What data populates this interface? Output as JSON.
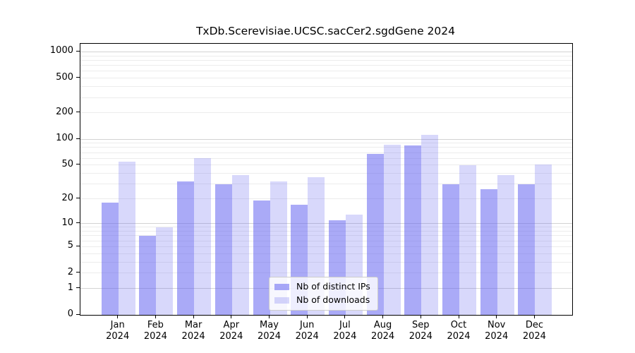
{
  "chart_data": {
    "type": "bar",
    "title": "TxDb.Scerevisiae.UCSC.sacCer2.sgdGene 2024",
    "categories": [
      "Jan",
      "Feb",
      "Mar",
      "Apr",
      "May",
      "Jun",
      "Jul",
      "Aug",
      "Sep",
      "Oct",
      "Nov",
      "Dec"
    ],
    "year_label": "2024",
    "series": [
      {
        "name": "Nb of distinct IPs",
        "color": "rgba(100,100,240,0.55)",
        "values": [
          18,
          7,
          32,
          30,
          19,
          17,
          11,
          68,
          84,
          30,
          26,
          30
        ]
      },
      {
        "name": "Nb of downloads",
        "color": "rgba(100,100,240,0.25)",
        "values": [
          55,
          9,
          60,
          38,
          32,
          36,
          13,
          86,
          112,
          50,
          38,
          51
        ]
      }
    ],
    "yscale": "log1p",
    "y_ticks": [
      0,
      1,
      2,
      5,
      10,
      20,
      50,
      100,
      200,
      500,
      1000
    ],
    "ylim": [
      0,
      1200
    ],
    "xlabel": "",
    "ylabel": "",
    "grid": true,
    "legend_position": "lower center"
  }
}
